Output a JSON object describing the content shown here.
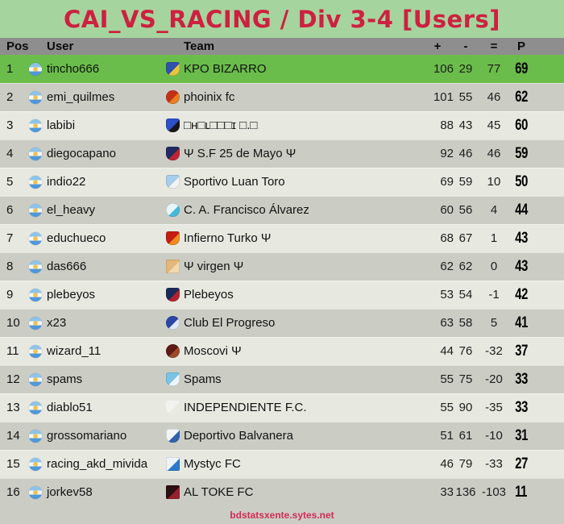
{
  "banner": {
    "title": "CAI_VS_RACING / Div 3-4 [Users]"
  },
  "table": {
    "columns": {
      "pos": "Pos",
      "user": "User",
      "team": "Team",
      "plus": "+",
      "minus": "-",
      "equals": "=",
      "points": "P"
    },
    "rows": [
      {
        "pos": "1",
        "flag": "argentina",
        "user": "tincho666",
        "team": "KPO BIZARRO",
        "plus": "106",
        "minus": "29",
        "equals": "77",
        "points": "69",
        "highlight": true,
        "crest": {
          "name": "kpo-bizarro-crest",
          "shape": "shield",
          "c1": "#2e52ae",
          "c2": "#e9c53e"
        }
      },
      {
        "pos": "2",
        "flag": "argentina",
        "user": "emi_quilmes",
        "team": "phoinix fc",
        "plus": "101",
        "minus": "55",
        "equals": "46",
        "points": "62",
        "highlight": false,
        "crest": {
          "name": "phoinix-fc-crest",
          "shape": "circle",
          "c1": "#c23117",
          "c2": "#e6801f"
        }
      },
      {
        "pos": "3",
        "flag": "argentina",
        "user": "labibi",
        "team": "□ʜ□ʟ□□□ɪ □.□",
        "plus": "88",
        "minus": "43",
        "equals": "45",
        "points": "60",
        "highlight": false,
        "crest": {
          "name": "labibi-team-crest",
          "shape": "shield",
          "c1": "#2b50c8",
          "c2": "#17171b"
        }
      },
      {
        "pos": "4",
        "flag": "argentina",
        "user": "diegocapano",
        "team": "Ψ  S.F 25 de Mayo  Ψ",
        "plus": "92",
        "minus": "46",
        "equals": "46",
        "points": "59",
        "highlight": false,
        "crest": {
          "name": "sf-25-de-mayo-crest",
          "shape": "shield",
          "c1": "#232a61",
          "c2": "#c02334"
        }
      },
      {
        "pos": "5",
        "flag": "argentina",
        "user": "indio22",
        "team": "Sportivo Luan Toro",
        "plus": "69",
        "minus": "59",
        "equals": "10",
        "points": "50",
        "highlight": false,
        "crest": {
          "name": "sportivo-luan-toro-crest",
          "shape": "shield",
          "c1": "#a9cce8",
          "c2": "#f2f4f4"
        }
      },
      {
        "pos": "6",
        "flag": "argentina",
        "user": "el_heavy",
        "team": "C. A. Francisco Álvarez",
        "plus": "60",
        "minus": "56",
        "equals": "4",
        "points": "44",
        "highlight": false,
        "crest": {
          "name": "francisco-alvarez-crest",
          "shape": "circle",
          "c1": "#e8f6fa",
          "c2": "#46b9d9"
        }
      },
      {
        "pos": "7",
        "flag": "argentina",
        "user": "educhueco",
        "team": "Infierno Turko Ψ",
        "plus": "68",
        "minus": "67",
        "equals": "1",
        "points": "43",
        "highlight": false,
        "crest": {
          "name": "infierno-turko-crest",
          "shape": "shield",
          "c1": "#c41d12",
          "c2": "#ef8c1e"
        }
      },
      {
        "pos": "8",
        "flag": "argentina",
        "user": "das666",
        "team": "Ψ virgen Ψ",
        "plus": "62",
        "minus": "62",
        "equals": "0",
        "points": "43",
        "highlight": false,
        "crest": {
          "name": "virgen-crest",
          "shape": "square",
          "c1": "#e3b87a",
          "c2": "#f0d9b0"
        }
      },
      {
        "pos": "9",
        "flag": "argentina",
        "user": "plebeyos",
        "team": "Plebeyos",
        "plus": "53",
        "minus": "54",
        "equals": "-1",
        "points": "42",
        "highlight": false,
        "crest": {
          "name": "plebeyos-crest",
          "shape": "shield",
          "c1": "#1c2a58",
          "c2": "#b3222e"
        }
      },
      {
        "pos": "10",
        "flag": "argentina",
        "user": "x23",
        "team": "Club El Progreso",
        "plus": "63",
        "minus": "58",
        "equals": "5",
        "points": "41",
        "highlight": false,
        "crest": {
          "name": "club-el-progreso-crest",
          "shape": "circle",
          "c1": "#2a46a5",
          "c2": "#dfe7f5"
        }
      },
      {
        "pos": "11",
        "flag": "argentina",
        "user": "wizard_11",
        "team": "Moscovi Ψ",
        "plus": "44",
        "minus": "76",
        "equals": "-32",
        "points": "37",
        "highlight": false,
        "crest": {
          "name": "moscovi-crest",
          "shape": "circle",
          "c1": "#5e1a14",
          "c2": "#9c4a28"
        }
      },
      {
        "pos": "12",
        "flag": "argentina",
        "user": "spams",
        "team": "Spams",
        "plus": "55",
        "minus": "75",
        "equals": "-20",
        "points": "33",
        "highlight": false,
        "crest": {
          "name": "spams-crest",
          "shape": "shield",
          "c1": "#79c4e4",
          "c2": "#eef6fb"
        }
      },
      {
        "pos": "13",
        "flag": "argentina",
        "user": "diablo51",
        "team": "INDEPENDIENTE F.C.",
        "plus": "55",
        "minus": "90",
        "equals": "-35",
        "points": "33",
        "highlight": false,
        "crest": {
          "name": "independiente-fc-crest",
          "shape": "none",
          "c1": "#f2f3ee",
          "c2": "#e9ebe3"
        }
      },
      {
        "pos": "14",
        "flag": "argentina",
        "user": "grossomariano",
        "team": "Deportivo Balvanera",
        "plus": "51",
        "minus": "61",
        "equals": "-10",
        "points": "31",
        "highlight": false,
        "crest": {
          "name": "deportivo-balvanera-crest",
          "shape": "shield",
          "c1": "#f2f5f8",
          "c2": "#2f63b2"
        }
      },
      {
        "pos": "15",
        "flag": "argentina",
        "user": "racing_akd_mivida",
        "team": "Mystyc FC",
        "plus": "46",
        "minus": "79",
        "equals": "-33",
        "points": "27",
        "highlight": false,
        "crest": {
          "name": "mystyc-fc-crest",
          "shape": "square",
          "c1": "#eef4fb",
          "c2": "#2b7bc8"
        }
      },
      {
        "pos": "16",
        "flag": "argentina",
        "user": "jorkev58",
        "team": "AL TOKE FC",
        "plus": "33",
        "minus": "136",
        "equals": "-103",
        "points": "11",
        "highlight": false,
        "crest": {
          "name": "al-toke-fc-crest",
          "shape": "square",
          "c1": "#2c0f12",
          "c2": "#97202c"
        }
      }
    ]
  },
  "footer": {
    "link_text": "bdstatsxente.sytes.net"
  },
  "colors": {
    "banner_bg": "#a6d49e",
    "title": "#ce2040",
    "header_bg": "#8e8e8e",
    "row_light": "#e7e9e1",
    "row_dark": "#cbcdc5",
    "leader_row": "#6abd4b",
    "footer_link": "#d42a55",
    "flag_sun": "#f2c14e"
  }
}
